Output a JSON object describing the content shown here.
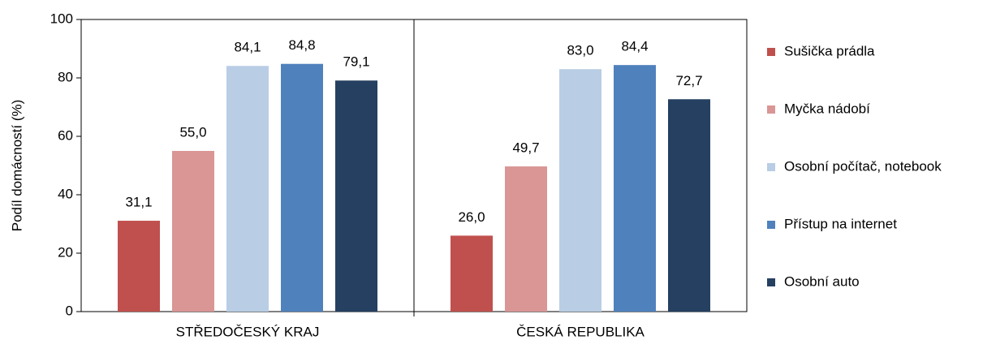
{
  "chart_data": {
    "type": "bar",
    "y_label": "Podíl domácností (%)",
    "categories": [
      "STŘEDOČESKÝ KRAJ",
      "ČESKÁ REPUBLIKA"
    ],
    "series": [
      {
        "name": "Sušička prádla",
        "color": "#c0504d",
        "values": [
          31.1,
          26.0
        ],
        "value_labels": [
          "31,1",
          "26,0"
        ]
      },
      {
        "name": "Myčka nádobí",
        "color": "#d99694",
        "values": [
          55.0,
          49.7
        ],
        "value_labels": [
          "55,0",
          "49,7"
        ]
      },
      {
        "name": "Osobní počítač, notebook",
        "color": "#b9cde5",
        "values": [
          84.1,
          83.0
        ],
        "value_labels": [
          "84,1",
          "83,0"
        ]
      },
      {
        "name": "Přístup na internet",
        "color": "#4f81bd",
        "values": [
          84.8,
          84.4
        ],
        "value_labels": [
          "84,8",
          "84,4"
        ]
      },
      {
        "name": "Osobní auto",
        "color": "#254061",
        "values": [
          79.1,
          72.7
        ],
        "value_labels": [
          "79,1",
          "72,7"
        ]
      }
    ],
    "ylim": [
      0,
      100
    ],
    "yticks": [
      0,
      20,
      40,
      60,
      80,
      100
    ],
    "legend": "right"
  }
}
